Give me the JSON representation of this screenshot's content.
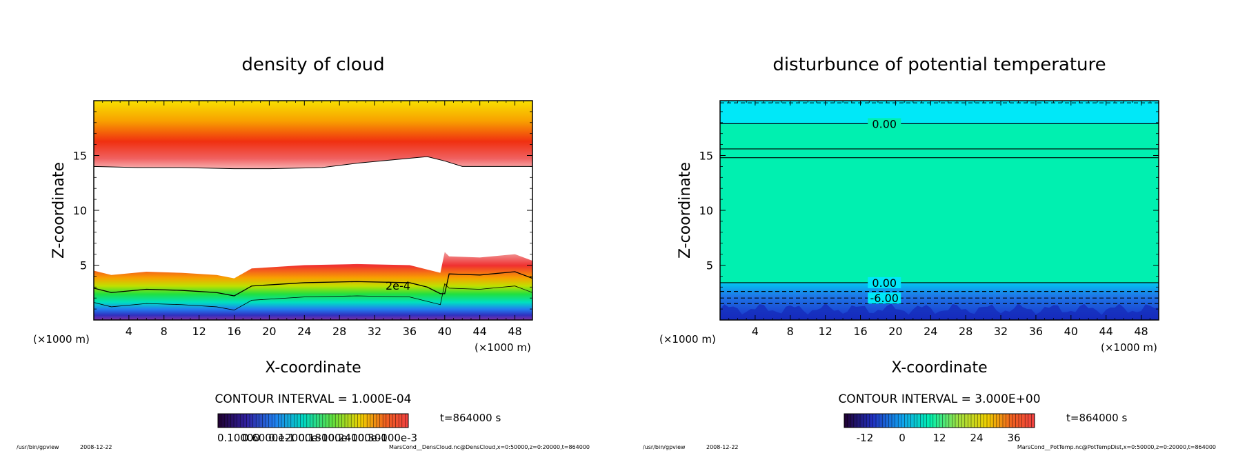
{
  "footer": {
    "left_program": "/usr/bin/gpview",
    "left_date": "2008-12-22",
    "left_source": "MarsCond__DensCloud.nc@DensCloud,x=0:50000,z=0:20000,t=864000",
    "right_program": "/usr/bin/gpview",
    "right_date": "2008-12-22",
    "right_source": "MarsCond__PotTemp.nc@PotTempDist,x=0:50000,z=0:20000,t=864000"
  },
  "chart_data": [
    {
      "type": "heatmap",
      "title": "density of cloud",
      "xlabel": "X-coordinate",
      "ylabel": "Z-coordinate",
      "x_unit_label": "(×1000 m)",
      "y_unit_label": "(×1000 m)",
      "xlim": [
        0,
        50
      ],
      "ylim": [
        0,
        20
      ],
      "x_ticks": [
        4,
        8,
        12,
        16,
        20,
        24,
        28,
        32,
        36,
        40,
        44,
        48
      ],
      "y_ticks": [
        5,
        10,
        15
      ],
      "contour_label": "2e-4",
      "contour_interval": "CONTOUR INTERVAL = 1.000E-04",
      "time_label": "t=864000 s",
      "colorbar_labels": [
        "0.10000",
        "0.6000e-1",
        "0.12000e-1",
        "0.18000e-1",
        "0.24000e-1",
        "0.30000e-3"
      ],
      "upper_cloud_base_profile": {
        "x": [
          0,
          5,
          10,
          16,
          20,
          26,
          30,
          34,
          38,
          40,
          42,
          50
        ],
        "z": [
          14.0,
          13.9,
          13.9,
          13.8,
          13.8,
          13.9,
          14.3,
          14.6,
          14.9,
          14.5,
          14.0,
          14.0
        ]
      },
      "lower_cloud_top_profile": {
        "x": [
          0,
          2,
          6,
          10,
          14,
          16,
          18,
          24,
          30,
          36,
          38,
          39.5,
          40,
          40.5,
          44,
          48,
          50
        ],
        "z": [
          4.5,
          4.1,
          4.4,
          4.3,
          4.1,
          3.8,
          4.7,
          5.0,
          5.1,
          5.0,
          4.6,
          4.3,
          6.2,
          5.8,
          5.7,
          6.0,
          5.4
        ]
      }
    },
    {
      "type": "heatmap",
      "title": "disturbunce of potential temperature",
      "xlabel": "X-coordinate",
      "ylabel": "Z-coordinate",
      "x_unit_label": "(×1000 m)",
      "y_unit_label": "(×1000 m)",
      "xlim": [
        0,
        50
      ],
      "ylim": [
        0,
        20
      ],
      "x_ticks": [
        4,
        8,
        12,
        16,
        20,
        24,
        28,
        32,
        36,
        40,
        44,
        48
      ],
      "y_ticks": [
        5,
        10,
        15
      ],
      "contour_lines_z": [
        17.9,
        15.6,
        14.8,
        3.4,
        2.6,
        2.0,
        1.5
      ],
      "contour_labels": [
        {
          "text": "0.00",
          "x": 17,
          "z": 17.9
        },
        {
          "text": "0.00",
          "x": 17,
          "z": 3.4
        },
        {
          "text": "-6.00",
          "x": 17,
          "z": 2.0
        }
      ],
      "contour_interval": "CONTOUR INTERVAL = 3.000E+00",
      "time_label": "t=864000 s",
      "colorbar_labels": [
        "-12",
        "0",
        "12",
        "24",
        "36"
      ],
      "colors": {
        "main": "#00f0b0",
        "top": "#00e8f8",
        "bottom": "#1638d8"
      }
    }
  ]
}
